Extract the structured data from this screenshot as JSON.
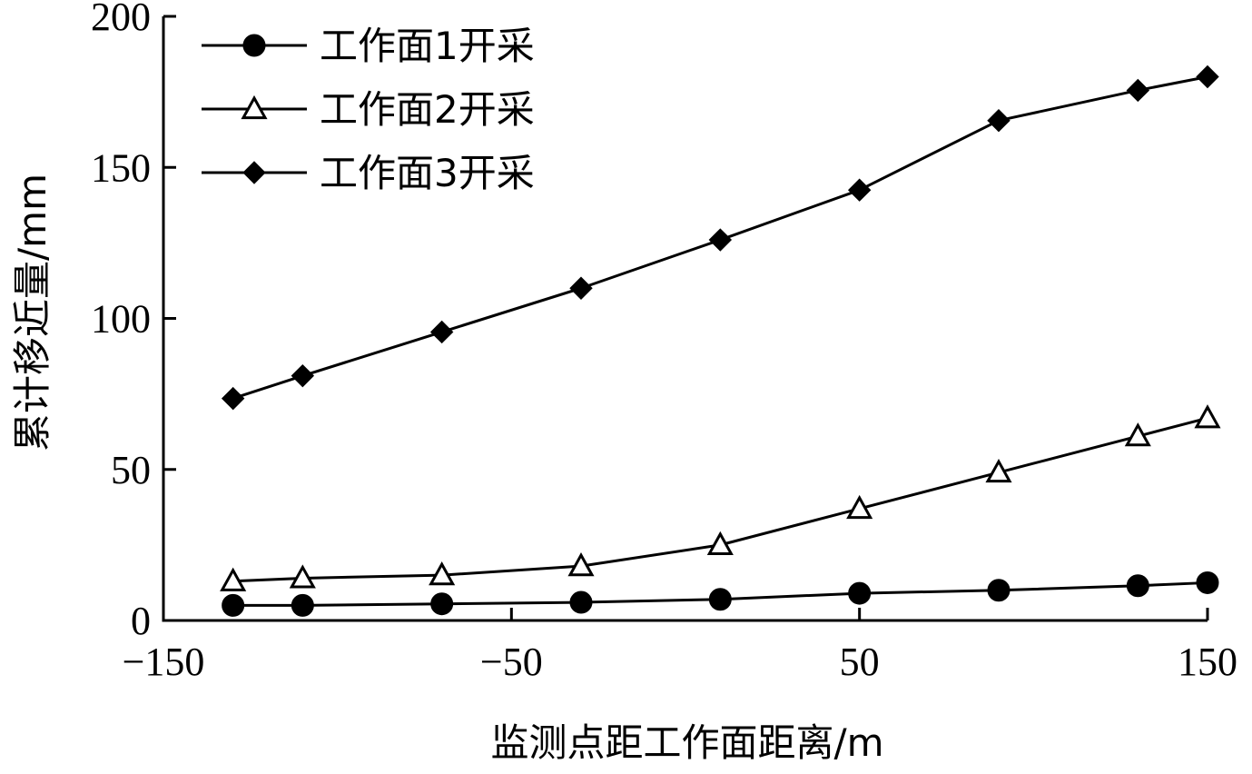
{
  "chart_data": {
    "type": "line",
    "title": "",
    "xlabel": "监测点距工作面距离/m",
    "ylabel": "累计移近量/mm",
    "xlim": [
      -150,
      150
    ],
    "ylim": [
      0,
      200
    ],
    "xticks": [
      -150,
      -50,
      50,
      150
    ],
    "xtick_labels": [
      "−150",
      "−50",
      "50",
      "150"
    ],
    "yticks": [
      0,
      50,
      100,
      150,
      200
    ],
    "ytick_labels": [
      "0",
      "50",
      "100",
      "150",
      "200"
    ],
    "grid": false,
    "legend_position": "top-left",
    "x": [
      -130,
      -110,
      -70,
      -30,
      10,
      50,
      90,
      130,
      150
    ],
    "series": [
      {
        "name": "工作面1开采",
        "marker": "circle-filled",
        "color": "#000000",
        "values": [
          5,
          5,
          5.5,
          6,
          7,
          9,
          10,
          11.5,
          12.5
        ]
      },
      {
        "name": "工作面2开采",
        "marker": "triangle-open",
        "color": "#000000",
        "values": [
          13,
          14,
          15,
          18,
          25,
          37,
          49,
          61,
          67
        ]
      },
      {
        "name": "工作面3开采",
        "marker": "diamond-filled",
        "color": "#000000",
        "values": [
          73.5,
          81,
          95.5,
          110,
          126,
          142.5,
          165.5,
          175.5,
          180
        ]
      }
    ]
  }
}
